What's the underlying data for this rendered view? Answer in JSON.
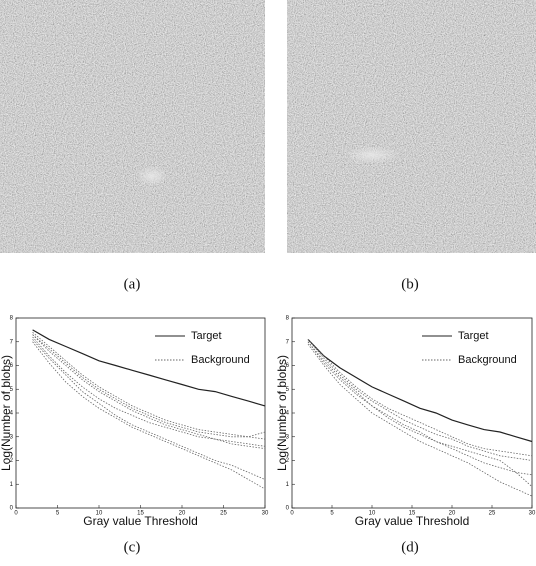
{
  "images": [
    {
      "caption": "(a)"
    },
    {
      "caption": "(b)"
    }
  ],
  "chart_data": [
    {
      "type": "line",
      "caption": "(c)",
      "x_label": "Gray value Threshold",
      "y_label": "Log(Number of blobs)",
      "x": [
        2,
        4,
        6,
        8,
        10,
        12,
        14,
        16,
        18,
        20,
        22,
        24,
        26,
        28,
        30
      ],
      "xlim": [
        0,
        30
      ],
      "ylim": [
        0,
        8
      ],
      "xticks": [
        0,
        5,
        10,
        15,
        20,
        25,
        30
      ],
      "yticks": [
        0,
        1,
        2,
        3,
        4,
        5,
        6,
        7,
        8
      ],
      "legend": "upper right",
      "series": [
        {
          "name": "Target",
          "color": "#222222",
          "style": "solid",
          "lines": [
            [
              7.5,
              7.1,
              6.8,
              6.5,
              6.2,
              6.0,
              5.8,
              5.6,
              5.4,
              5.2,
              5.0,
              4.9,
              4.7,
              4.5,
              4.3
            ]
          ]
        },
        {
          "name": "Background",
          "color": "#666666",
          "style": "dotted",
          "lines": [
            [
              7.3,
              6.6,
              6.0,
              5.4,
              4.9,
              4.5,
              4.1,
              3.8,
              3.5,
              3.3,
              3.1,
              2.9,
              2.7,
              2.6,
              2.5
            ],
            [
              7.2,
              6.4,
              5.7,
              5.1,
              4.6,
              4.2,
              3.9,
              3.6,
              3.4,
              3.2,
              3.0,
              2.9,
              2.8,
              2.7,
              2.6
            ],
            [
              7.4,
              6.8,
              6.2,
              5.6,
              5.1,
              4.7,
              4.3,
              4.0,
              3.7,
              3.5,
              3.3,
              3.2,
              3.1,
              3.0,
              2.9
            ],
            [
              7.1,
              6.3,
              5.6,
              4.9,
              4.4,
              3.9,
              3.5,
              3.2,
              2.9,
              2.6,
              2.3,
              2.0,
              1.8,
              1.5,
              1.2
            ],
            [
              7.0,
              6.1,
              5.3,
              4.7,
              4.2,
              3.8,
              3.4,
              3.1,
              2.8,
              2.5,
              2.2,
              1.9,
              1.6,
              1.2,
              0.8
            ],
            [
              7.3,
              6.7,
              6.1,
              5.5,
              5.0,
              4.6,
              4.2,
              3.9,
              3.6,
              3.4,
              3.2,
              3.1,
              3.0,
              3.0,
              3.2
            ]
          ]
        }
      ]
    },
    {
      "type": "line",
      "caption": "(d)",
      "x_label": "Gray value Threshold",
      "y_label": "Log(Number of blobs)",
      "x": [
        2,
        4,
        6,
        8,
        10,
        12,
        14,
        16,
        18,
        20,
        22,
        24,
        26,
        28,
        30
      ],
      "xlim": [
        0,
        30
      ],
      "ylim": [
        0,
        8
      ],
      "xticks": [
        0,
        5,
        10,
        15,
        20,
        25,
        30
      ],
      "yticks": [
        0,
        1,
        2,
        3,
        4,
        5,
        6,
        7,
        8
      ],
      "legend": "upper right",
      "series": [
        {
          "name": "Target",
          "color": "#222222",
          "style": "solid",
          "lines": [
            [
              7.1,
              6.4,
              5.9,
              5.5,
              5.1,
              4.8,
              4.5,
              4.2,
              4.0,
              3.7,
              3.5,
              3.3,
              3.2,
              3.0,
              2.8
            ]
          ]
        },
        {
          "name": "Background",
          "color": "#666666",
          "style": "dotted",
          "lines": [
            [
              7.0,
              6.2,
              5.5,
              4.9,
              4.3,
              3.9,
              3.5,
              3.2,
              2.8,
              2.5,
              2.2,
              1.9,
              1.7,
              1.5,
              1.4
            ],
            [
              7.1,
              6.3,
              5.6,
              5.0,
              4.5,
              4.1,
              3.7,
              3.4,
              3.1,
              2.9,
              2.6,
              2.4,
              2.2,
              2.1,
              2.0
            ],
            [
              6.9,
              6.0,
              5.2,
              4.6,
              4.0,
              3.6,
              3.2,
              2.8,
              2.5,
              2.2,
              1.9,
              1.5,
              1.1,
              0.8,
              0.5
            ],
            [
              7.0,
              6.1,
              5.4,
              4.8,
              4.3,
              3.8,
              3.4,
              3.1,
              2.8,
              2.6,
              2.4,
              2.2,
              2.0,
              1.5,
              0.9
            ],
            [
              7.1,
              6.4,
              5.7,
              5.1,
              4.6,
              4.2,
              3.9,
              3.6,
              3.3,
              3.0,
              2.7,
              2.5,
              2.4,
              2.3,
              2.2
            ]
          ]
        }
      ]
    }
  ]
}
